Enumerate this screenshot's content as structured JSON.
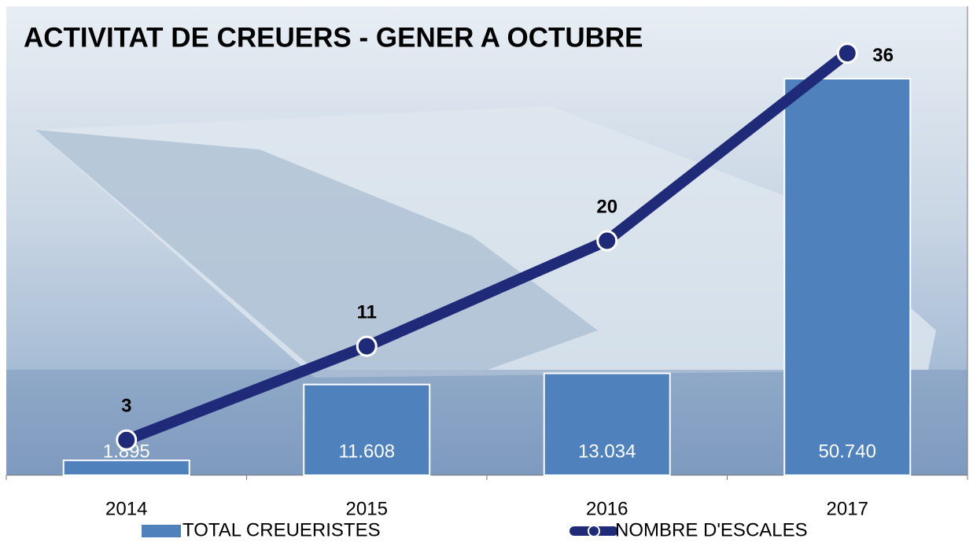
{
  "chart_data": {
    "type": "bar",
    "title": "ACTIVITAT DE CREUERS - GENER A OCTUBRE",
    "categories": [
      "2014",
      "2015",
      "2016",
      "2017"
    ],
    "series": [
      {
        "name": "TOTAL CREUERISTES",
        "type": "bar",
        "color": "#4f81bd",
        "values": [
          1895,
          11608,
          13034,
          50740
        ],
        "value_labels": [
          "1.895",
          "11.608",
          "13.034",
          "50.740"
        ]
      },
      {
        "name": "NOMBRE D'ESCALES",
        "type": "line",
        "axis": "y2",
        "color": "#1f2a78",
        "values": [
          3,
          11,
          20,
          36
        ]
      }
    ],
    "ylim": [
      0,
      60000
    ],
    "y2lim": [
      0,
      40
    ]
  }
}
